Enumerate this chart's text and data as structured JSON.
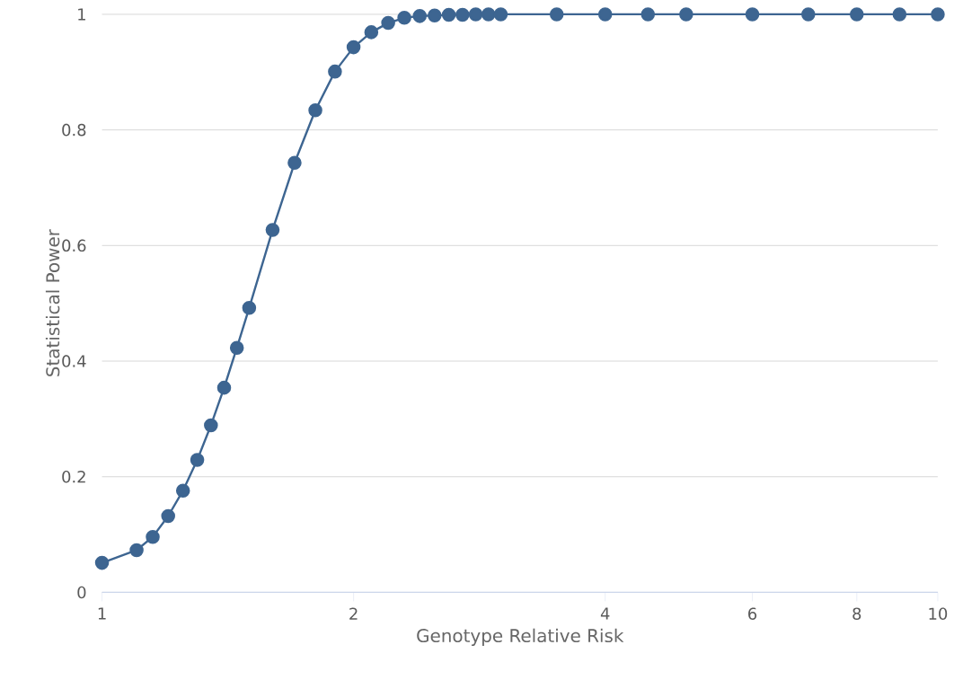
{
  "chart_data": {
    "type": "line",
    "xlabel": "Genotype Relative Risk",
    "ylabel": "Statistical Power",
    "x": [
      1,
      1.1,
      1.15,
      1.2,
      1.25,
      1.3,
      1.35,
      1.4,
      1.45,
      1.5,
      1.6,
      1.7,
      1.8,
      1.9,
      2,
      2.1,
      2.2,
      2.3,
      2.4,
      2.5,
      2.6,
      2.7,
      2.8,
      2.9,
      3,
      3.5,
      4,
      4.5,
      5,
      6,
      7,
      8,
      9,
      10
    ],
    "series": [
      {
        "color": "#3d6591",
        "values": [
          0.051,
          0.073,
          0.096,
          0.132,
          0.176,
          0.229,
          0.289,
          0.354,
          0.423,
          0.492,
          0.627,
          0.743,
          0.834,
          0.901,
          0.943,
          0.969,
          0.985,
          0.994,
          0.997,
          0.998,
          0.999,
          0.999,
          1,
          1,
          1,
          1,
          1,
          1,
          1,
          1,
          1,
          1,
          1,
          1
        ]
      }
    ],
    "log": "x",
    "xlim": [
      1,
      10
    ],
    "xticks": [
      1,
      2,
      4,
      6,
      8,
      10
    ],
    "ylim": [
      0,
      1
    ],
    "yticks": [
      0,
      0.2,
      0.4,
      0.6,
      0.8,
      1
    ],
    "grid": "y",
    "marker": "circle",
    "line_style": "solid"
  }
}
